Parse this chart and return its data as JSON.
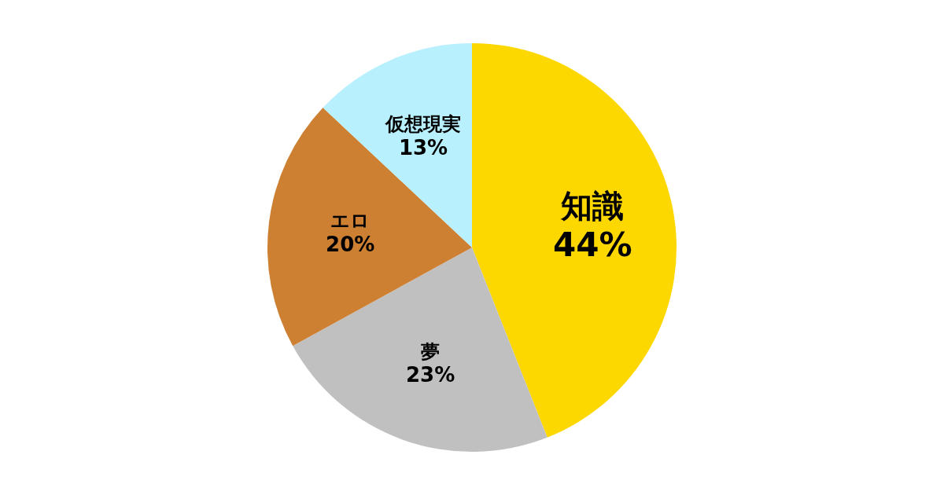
{
  "chart_data": {
    "type": "pie",
    "categories": [
      "知識",
      "夢",
      "エロ",
      "仮想現実"
    ],
    "values": [
      44,
      23,
      20,
      13
    ],
    "colors": [
      "#fdd700",
      "#c0c0c0",
      "#cd7f32",
      "#b9f0fe"
    ],
    "value_labels": [
      "44%",
      "23%",
      "20%",
      "13%"
    ],
    "legend": false
  }
}
